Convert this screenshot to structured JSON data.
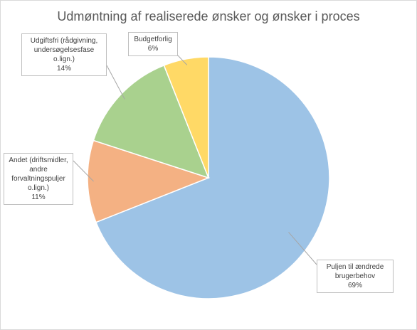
{
  "chart_data": {
    "type": "pie",
    "title": "Udmøntning af realiserede ønsker og ønsker i proces",
    "categories": [
      "Puljen til ændrede brugerbehov",
      "Andet (driftsmidler, andre forvaltningspuljer o.lign.)",
      "Udgiftsfri (rådgivning, undersøgelsesfase o.lign.)",
      "Budgetforlig"
    ],
    "values": [
      69,
      11,
      14,
      6
    ],
    "value_labels": [
      "69%",
      "11%",
      "14%",
      "6%"
    ],
    "colors": [
      "#9dc3e6",
      "#f4b183",
      "#a9d18e",
      "#ffd966"
    ]
  }
}
